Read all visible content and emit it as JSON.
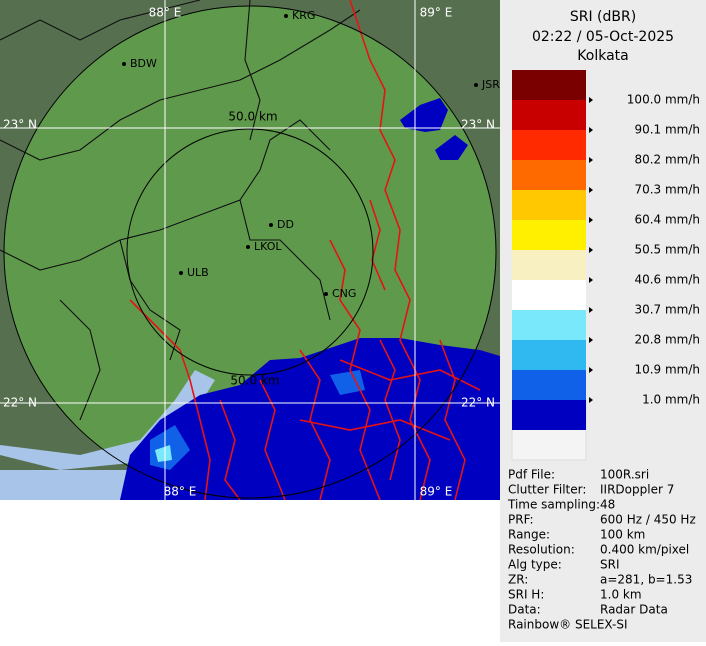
{
  "map": {
    "grid_labels": [
      "88° E",
      "89° E",
      "88° E",
      "89° E",
      "23° N",
      "23° N",
      "22° N",
      "22° N"
    ],
    "cities": [
      "KRG",
      "BDW",
      "JSR",
      "DD",
      "LKOL",
      "ULB",
      "CNG"
    ],
    "ring_labels": [
      "50.0 km",
      "50.0 km"
    ]
  },
  "legend": {
    "title": "SRI (dBR)",
    "time": "02:22 / 05-Oct-2025",
    "station": "Kolkata",
    "top_color": "#7a0000",
    "scale": [
      {
        "label": "100.0 mm/h",
        "color": "#c80000"
      },
      {
        "label": "90.1 mm/h",
        "color": "#ff2a00"
      },
      {
        "label": "80.2 mm/h",
        "color": "#ff6a00"
      },
      {
        "label": "70.3 mm/h",
        "color": "#ffc800"
      },
      {
        "label": "60.4 mm/h",
        "color": "#fff000"
      },
      {
        "label": "50.5 mm/h",
        "color": "#f8f0c0"
      },
      {
        "label": "40.6 mm/h",
        "color": "#ffffff"
      },
      {
        "label": "30.7 mm/h",
        "color": "#78e8fa"
      },
      {
        "label": "20.8 mm/h",
        "color": "#30b8f0"
      },
      {
        "label": "10.9 mm/h",
        "color": "#1060e8"
      },
      {
        "label": "1.0 mm/h",
        "color": "#0000c0"
      }
    ]
  },
  "info": [
    [
      "Pdf File:",
      "100R.sri"
    ],
    [
      "Clutter Filter:",
      "IIRDoppler 7"
    ],
    [
      "Time sampling:",
      "48"
    ],
    [
      "PRF:",
      "600 Hz / 450 Hz"
    ],
    [
      "Range:",
      "100 km"
    ],
    [
      "Resolution:",
      "0.400 km/pixel"
    ],
    [
      "Alg type:",
      "SRI"
    ],
    [
      "ZR:",
      "a=281, b=1.53"
    ],
    [
      "SRI H:",
      "1.0 km"
    ],
    [
      "Data:",
      "Radar Data"
    ]
  ],
  "footer": "Rainbow® SELEX-SI"
}
